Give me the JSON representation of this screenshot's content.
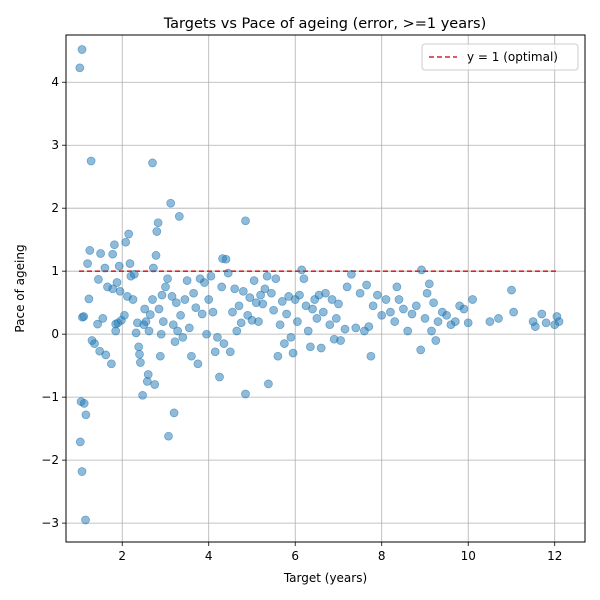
{
  "chart_data": {
    "type": "scatter",
    "title": "Targets vs Pace of ageing (error, >=1 years)",
    "xlabel": "Target (years)",
    "ylabel": "Pace of ageing",
    "xlim": [
      0.7,
      12.7
    ],
    "ylim": [
      -3.3,
      4.75
    ],
    "xticks": [
      2,
      4,
      6,
      8,
      10,
      12
    ],
    "yticks": [
      -3,
      -2,
      -1,
      0,
      1,
      2,
      3,
      4
    ],
    "grid": true,
    "legend": {
      "placement": "top-right",
      "entries": [
        {
          "label": "y = 1 (optimal)",
          "style": "dashed",
          "color": "#d62728"
        }
      ]
    },
    "reference_line": {
      "y": 1,
      "x_range": [
        1.0,
        12.05
      ],
      "color": "#d62728",
      "style": "dashed",
      "label": "y = 1 (optimal)"
    },
    "marker_color": "#1f77b4",
    "marker_alpha": 0.5,
    "series": [
      {
        "values": [
          [
            1.07,
            4.52
          ],
          [
            1.02,
            4.23
          ],
          [
            1.28,
            2.75
          ],
          [
            1.03,
            -1.71
          ],
          [
            1.07,
            -2.18
          ],
          [
            1.15,
            -2.95
          ],
          [
            1.05,
            -1.07
          ],
          [
            1.12,
            -1.1
          ],
          [
            1.16,
            -1.28
          ],
          [
            1.08,
            0.27
          ],
          [
            1.11,
            0.28
          ],
          [
            1.2,
            1.12
          ],
          [
            1.25,
            1.33
          ],
          [
            1.23,
            0.56
          ],
          [
            1.3,
            -0.1
          ],
          [
            1.36,
            -0.15
          ],
          [
            1.43,
            0.16
          ],
          [
            1.45,
            0.87
          ],
          [
            1.5,
            1.28
          ],
          [
            1.55,
            0.25
          ],
          [
            1.48,
            -0.27
          ],
          [
            1.62,
            -0.33
          ],
          [
            1.6,
            1.05
          ],
          [
            1.66,
            0.75
          ],
          [
            1.75,
            -0.47
          ],
          [
            1.78,
            1.27
          ],
          [
            1.82,
            1.42
          ],
          [
            1.78,
            0.72
          ],
          [
            1.85,
            0.05
          ],
          [
            1.85,
            0.16
          ],
          [
            1.9,
            0.18
          ],
          [
            1.88,
            0.82
          ],
          [
            1.93,
            1.08
          ],
          [
            1.95,
            0.68
          ],
          [
            1.98,
            0.22
          ],
          [
            2.05,
            0.3
          ],
          [
            2.08,
            1.46
          ],
          [
            2.15,
            1.59
          ],
          [
            2.18,
            1.12
          ],
          [
            2.12,
            0.6
          ],
          [
            2.2,
            0.92
          ],
          [
            2.25,
            0.55
          ],
          [
            2.28,
            0.95
          ],
          [
            2.32,
            0.02
          ],
          [
            2.35,
            0.18
          ],
          [
            2.38,
            -0.2
          ],
          [
            2.4,
            -0.32
          ],
          [
            2.42,
            -0.45
          ],
          [
            2.47,
            -0.97
          ],
          [
            2.5,
            0.15
          ],
          [
            2.52,
            0.4
          ],
          [
            2.55,
            0.2
          ],
          [
            2.58,
            -0.75
          ],
          [
            2.6,
            -0.64
          ],
          [
            2.62,
            0.05
          ],
          [
            2.65,
            0.31
          ],
          [
            2.7,
            2.72
          ],
          [
            2.7,
            0.55
          ],
          [
            2.72,
            1.05
          ],
          [
            2.75,
            -0.8
          ],
          [
            2.78,
            1.25
          ],
          [
            2.8,
            1.63
          ],
          [
            2.83,
            1.77
          ],
          [
            2.85,
            0.4
          ],
          [
            2.88,
            -0.35
          ],
          [
            2.9,
            0.0
          ],
          [
            2.92,
            0.62
          ],
          [
            2.95,
            0.2
          ],
          [
            3.0,
            0.75
          ],
          [
            3.05,
            0.88
          ],
          [
            3.07,
            -1.62
          ],
          [
            3.12,
            2.08
          ],
          [
            3.15,
            0.6
          ],
          [
            3.18,
            0.15
          ],
          [
            3.2,
            -1.25
          ],
          [
            3.22,
            -0.12
          ],
          [
            3.25,
            0.5
          ],
          [
            3.28,
            0.05
          ],
          [
            3.32,
            1.87
          ],
          [
            3.35,
            0.3
          ],
          [
            3.4,
            -0.05
          ],
          [
            3.45,
            0.55
          ],
          [
            3.5,
            0.85
          ],
          [
            3.55,
            0.1
          ],
          [
            3.6,
            -0.35
          ],
          [
            3.65,
            0.65
          ],
          [
            3.7,
            0.42
          ],
          [
            3.75,
            -0.47
          ],
          [
            3.8,
            0.88
          ],
          [
            3.85,
            0.32
          ],
          [
            3.9,
            0.82
          ],
          [
            3.95,
            0.0
          ],
          [
            4.0,
            0.55
          ],
          [
            4.05,
            0.92
          ],
          [
            4.1,
            0.35
          ],
          [
            4.15,
            -0.28
          ],
          [
            4.2,
            -0.05
          ],
          [
            4.25,
            -0.68
          ],
          [
            4.3,
            0.75
          ],
          [
            4.32,
            1.2
          ],
          [
            4.35,
            -0.15
          ],
          [
            4.4,
            1.19
          ],
          [
            4.45,
            0.97
          ],
          [
            4.5,
            -0.28
          ],
          [
            4.55,
            0.35
          ],
          [
            4.6,
            0.72
          ],
          [
            4.65,
            0.05
          ],
          [
            4.7,
            0.45
          ],
          [
            4.75,
            0.18
          ],
          [
            4.8,
            0.68
          ],
          [
            4.85,
            1.8
          ],
          [
            4.85,
            -0.95
          ],
          [
            4.9,
            0.3
          ],
          [
            4.95,
            0.58
          ],
          [
            5.0,
            0.22
          ],
          [
            5.05,
            0.85
          ],
          [
            5.1,
            0.5
          ],
          [
            5.15,
            0.2
          ],
          [
            5.2,
            0.62
          ],
          [
            5.25,
            0.48
          ],
          [
            5.3,
            0.72
          ],
          [
            5.35,
            0.92
          ],
          [
            5.38,
            -0.79
          ],
          [
            5.45,
            0.65
          ],
          [
            5.5,
            0.38
          ],
          [
            5.55,
            0.88
          ],
          [
            5.6,
            -0.35
          ],
          [
            5.65,
            0.15
          ],
          [
            5.7,
            0.52
          ],
          [
            5.75,
            -0.15
          ],
          [
            5.8,
            0.32
          ],
          [
            5.85,
            0.6
          ],
          [
            5.9,
            -0.05
          ],
          [
            5.95,
            -0.3
          ],
          [
            6.0,
            0.55
          ],
          [
            6.05,
            0.2
          ],
          [
            6.1,
            0.62
          ],
          [
            6.15,
            1.02
          ],
          [
            6.2,
            0.88
          ],
          [
            6.25,
            0.45
          ],
          [
            6.3,
            0.05
          ],
          [
            6.35,
            -0.2
          ],
          [
            6.4,
            0.4
          ],
          [
            6.45,
            0.55
          ],
          [
            6.5,
            0.25
          ],
          [
            6.55,
            0.62
          ],
          [
            6.6,
            -0.22
          ],
          [
            6.65,
            0.35
          ],
          [
            6.7,
            0.65
          ],
          [
            6.8,
            0.15
          ],
          [
            6.85,
            0.55
          ],
          [
            6.9,
            -0.08
          ],
          [
            6.95,
            0.25
          ],
          [
            7.0,
            0.48
          ],
          [
            7.05,
            -0.1
          ],
          [
            7.15,
            0.08
          ],
          [
            7.2,
            0.75
          ],
          [
            7.3,
            0.95
          ],
          [
            7.4,
            0.1
          ],
          [
            7.5,
            0.65
          ],
          [
            7.6,
            0.05
          ],
          [
            7.65,
            0.78
          ],
          [
            7.7,
            0.12
          ],
          [
            7.75,
            -0.35
          ],
          [
            7.8,
            0.45
          ],
          [
            7.9,
            0.62
          ],
          [
            8.0,
            0.3
          ],
          [
            8.1,
            0.55
          ],
          [
            8.2,
            0.35
          ],
          [
            8.3,
            0.2
          ],
          [
            8.35,
            0.75
          ],
          [
            8.4,
            0.55
          ],
          [
            8.5,
            0.4
          ],
          [
            8.6,
            0.05
          ],
          [
            8.7,
            0.32
          ],
          [
            8.8,
            0.45
          ],
          [
            8.9,
            -0.25
          ],
          [
            8.92,
            1.02
          ],
          [
            9.0,
            0.25
          ],
          [
            9.05,
            0.65
          ],
          [
            9.1,
            0.8
          ],
          [
            9.15,
            0.05
          ],
          [
            9.2,
            0.5
          ],
          [
            9.25,
            -0.1
          ],
          [
            9.3,
            0.2
          ],
          [
            9.4,
            0.35
          ],
          [
            9.5,
            0.3
          ],
          [
            9.6,
            0.15
          ],
          [
            9.7,
            0.2
          ],
          [
            9.8,
            0.45
          ],
          [
            9.9,
            0.4
          ],
          [
            10.0,
            0.18
          ],
          [
            10.1,
            0.55
          ],
          [
            10.5,
            0.2
          ],
          [
            10.7,
            0.25
          ],
          [
            11.0,
            0.7
          ],
          [
            11.05,
            0.35
          ],
          [
            11.5,
            0.2
          ],
          [
            11.55,
            0.12
          ],
          [
            11.7,
            0.32
          ],
          [
            11.8,
            0.18
          ],
          [
            12.0,
            0.15
          ],
          [
            12.05,
            0.28
          ],
          [
            12.1,
            0.2
          ]
        ]
      }
    ]
  }
}
